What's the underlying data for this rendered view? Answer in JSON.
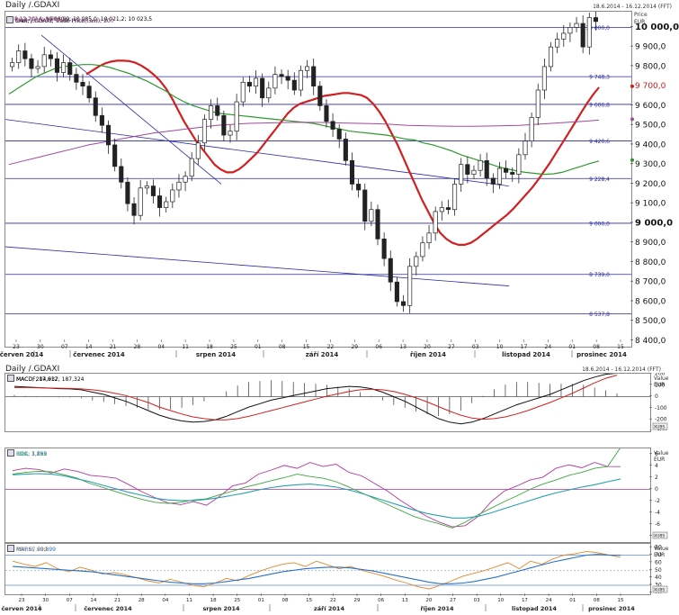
{
  "main_chart": {
    "title": "Daily /.GDAXI",
    "date_range": "18.6.2014 - 16.12.2014 (FFT)",
    "price_label": "Price",
    "currency": "EUR",
    "legend": [
      {
        "text": "SMA; /.GDAXI; Trade Price(Last); 20",
        "value": "8.12.2014; 9 694,2",
        "color": "#d21f1f"
      },
      {
        "text": "SMA; /.GDAXI; Trade Price(Last); 50",
        "value": "8.12.2014; 9 318,3",
        "color": "#2e9a2e"
      },
      {
        "text": "Cndl; /.GDAXI; Trade Price",
        "value": "8.12.2014; 10 060,9; 10 085,0; 10 021,2; 10 023,5",
        "color": "#222222"
      },
      {
        "text": "SMA; /.GDAXI; Trade Price(Last); 200",
        "value": "8.12.2014; 9 526,7",
        "color": "#a04a9a"
      }
    ],
    "level_labels": [
      "10 000,0",
      "9 748,3",
      "9 606,8",
      "9 420,6",
      "9 228,4",
      "9 000,0",
      "8 739,0",
      "8 537,8"
    ],
    "axis_labels": [
      "10 000,0",
      "9 900,0",
      "9 800,0",
      "9 700,0",
      "9 600,0",
      "9 500,0",
      "9 400,0",
      "9 300,0",
      "9 200,0",
      "9 100,0",
      "9 000,0",
      "8 900,0",
      "8 800,0",
      "8 700,0",
      "8 600,0",
      "8 500,0",
      "8 400,0"
    ],
    "day_ticks": [
      "23",
      "30",
      "07",
      "14",
      "21",
      "28",
      "04",
      "11",
      "18",
      "25",
      "01",
      "08",
      "15",
      "22",
      "29",
      "06",
      "13",
      "20",
      "27",
      "03",
      "10",
      "17",
      "24",
      "01",
      "08",
      "15"
    ],
    "months": [
      "červen 2014",
      "červenec 2014",
      "srpen 2014",
      "září 2014",
      "říjen 2014",
      "listopad 2014",
      "prosinec 2014"
    ]
  },
  "lower": {
    "title": "Daily /.GDAXI",
    "date_range": "18.6.2014 - 16.12.2014 (FFT)",
    "value_label": "Value",
    "unit": "EUR",
    "scale_tag": "XUBS",
    "macd": {
      "legend": [
        {
          "text": "MACDF; 17,612",
          "color": "#222222"
        },
        {
          "text": "MACD; 204,937; 187,324",
          "color": "#222222",
          "second_color": "#d21f1f"
        }
      ],
      "axis": [
        "200",
        "100",
        "0",
        "-100",
        "-200",
        "-300"
      ]
    },
    "roc": {
      "legend": [
        {
          "text": "ROC; 3,895",
          "color": "#b03a9a"
        },
        {
          "text": "ROC; 7,152",
          "color": "#3aa53a"
        },
        {
          "text": "EMA; 1,789",
          "color": "#2aa0b0"
        }
      ],
      "axis": [
        "6",
        "4",
        "2",
        "0",
        "-2",
        "-4",
        "-6",
        "-8"
      ]
    },
    "rsi": {
      "legend": [
        {
          "text": "RSI; 67,209",
          "color": "#e08a2a"
        },
        {
          "text": "MARSI; 69,899",
          "color": "#2a72c8"
        }
      ],
      "axis": [
        "80",
        "70",
        "60",
        "50",
        "40",
        "30",
        "20"
      ]
    }
  },
  "chart_data": [
    {
      "type": "candlestick",
      "title": "Daily /.GDAXI",
      "ylabel": "Price EUR",
      "ylim": [
        8370,
        10080
      ],
      "x_labels": [
        "23",
        "30",
        "07",
        "14",
        "21",
        "28",
        "04",
        "11",
        "18",
        "25",
        "01",
        "08",
        "15",
        "22",
        "29",
        "06",
        "13",
        "20",
        "27",
        "03",
        "10",
        "17",
        "24",
        "01",
        "08",
        "15"
      ],
      "candles_close": [
        9820,
        9880,
        9840,
        9790,
        9800,
        9860,
        9840,
        9770,
        9820,
        9760,
        9720,
        9700,
        9640,
        9550,
        9500,
        9400,
        9290,
        9210,
        9100,
        9040,
        9180,
        9190,
        9140,
        9080,
        9110,
        9170,
        9210,
        9240,
        9330,
        9410,
        9530,
        9600,
        9550,
        9450,
        9470,
        9620,
        9720,
        9700,
        9740,
        9640,
        9690,
        9760,
        9750,
        9730,
        9680,
        9780,
        9800,
        9700,
        9600,
        9520,
        9480,
        9430,
        9320,
        9200,
        9170,
        9010,
        9070,
        8920,
        8820,
        8700,
        8600,
        8580,
        8780,
        8830,
        8900,
        8950,
        9060,
        9080,
        9070,
        9200,
        9300,
        9250,
        9270,
        9320,
        9230,
        9200,
        9280,
        9260,
        9250,
        9350,
        9420,
        9540,
        9680,
        9800,
        9900,
        9940,
        9970,
        10000,
        10020,
        9900,
        10050,
        10030
      ],
      "horizontal_levels": [
        10000,
        9748.3,
        9606.8,
        9420.6,
        9228.4,
        9000,
        8739,
        8537.8
      ],
      "series": [
        {
          "name": "SMA 20",
          "values": [
            9760,
            9780,
            9800,
            9815,
            9825,
            9830,
            9830,
            9828,
            9820,
            9805,
            9785,
            9760,
            9730,
            9690,
            9640,
            9580,
            9520,
            9470,
            9420,
            9380,
            9340,
            9300,
            9275,
            9260,
            9260,
            9275,
            9300,
            9330,
            9360,
            9400,
            9440,
            9480,
            9520,
            9560,
            9590,
            9610,
            9620,
            9630,
            9640,
            9650,
            9655,
            9660,
            9665,
            9665,
            9660,
            9655,
            9640,
            9610,
            9570,
            9520,
            9460,
            9400,
            9330,
            9260,
            9190,
            9120,
            9060,
            9000,
            8950,
            8920,
            8900,
            8890,
            8890,
            8900,
            8920,
            8945,
            8970,
            8995,
            9020,
            9045,
            9075,
            9110,
            9145,
            9180,
            9220,
            9265,
            9310,
            9360,
            9410,
            9460,
            9510,
            9560,
            9610,
            9655,
            9694
          ]
        },
        {
          "name": "SMA 50",
          "values": [
            9660,
            9690,
            9720,
            9750,
            9770,
            9790,
            9800,
            9805,
            9810,
            9810,
            9805,
            9795,
            9780,
            9765,
            9745,
            9725,
            9700,
            9675,
            9645,
            9620,
            9600,
            9585,
            9570,
            9560,
            9555,
            9550,
            9545,
            9540,
            9535,
            9530,
            9525,
            9520,
            9515,
            9510,
            9500,
            9490,
            9480,
            9470,
            9465,
            9460,
            9455,
            9450,
            9440,
            9430,
            9425,
            9410,
            9400,
            9385,
            9370,
            9350,
            9335,
            9320,
            9305,
            9290,
            9278,
            9268,
            9260,
            9255,
            9250,
            9252,
            9260,
            9275,
            9290,
            9305,
            9318
          ]
        },
        {
          "name": "SMA 200",
          "values": [
            9300,
            9320,
            9340,
            9360,
            9380,
            9400,
            9415,
            9430,
            9445,
            9460,
            9470,
            9480,
            9490,
            9500,
            9505,
            9510,
            9512,
            9514,
            9515,
            9515,
            9514,
            9512,
            9510,
            9508,
            9505,
            9500,
            9498,
            9496,
            9495,
            9495,
            9496,
            9498,
            9500,
            9505,
            9510,
            9515,
            9520,
            9526.7
          ]
        }
      ]
    },
    {
      "type": "line",
      "title": "MACD",
      "ylim": [
        -300,
        200
      ],
      "series": [
        {
          "name": "MACD",
          "values": [
            90,
            85,
            80,
            75,
            70,
            68,
            60,
            40,
            20,
            -10,
            -40,
            -80,
            -120,
            -160,
            -190,
            -210,
            -220,
            -215,
            -200,
            -170,
            -130,
            -90,
            -60,
            -30,
            -10,
            10,
            30,
            50,
            70,
            80,
            90,
            85,
            70,
            40,
            0,
            -40,
            -90,
            -140,
            -190,
            -220,
            -235,
            -220,
            -190,
            -150,
            -110,
            -70,
            -40,
            -10,
            20,
            60,
            100,
            140,
            170,
            195,
            204.9
          ]
        },
        {
          "name": "Signal",
          "values": [
            80,
            80,
            78,
            76,
            74,
            72,
            68,
            60,
            48,
            30,
            10,
            -20,
            -50,
            -90,
            -120,
            -150,
            -175,
            -190,
            -200,
            -200,
            -190,
            -170,
            -145,
            -120,
            -95,
            -70,
            -45,
            -20,
            5,
            25,
            45,
            60,
            65,
            60,
            45,
            20,
            -10,
            -45,
            -85,
            -125,
            -160,
            -185,
            -195,
            -190,
            -175,
            -150,
            -120,
            -85,
            -50,
            -10,
            30,
            75,
            120,
            160,
            187.3
          ]
        }
      ]
    },
    {
      "type": "line",
      "title": "ROC",
      "ylim": [
        -9,
        7
      ],
      "series": [
        {
          "name": "ROC 3,895",
          "values": [
            3.2,
            3.6,
            3.4,
            2.8,
            3.5,
            3.1,
            2.4,
            2.2,
            1.9,
            0.8,
            -0.4,
            -1.4,
            -2.3,
            -2.6,
            -2.1,
            -2.7,
            -1.2,
            0.6,
            1.1,
            2.6,
            3.3,
            4.1,
            3.6,
            4.6,
            3.9,
            4.3,
            2.9,
            2.3,
            1.0,
            -0.3,
            -1.9,
            -3.3,
            -4.6,
            -5.6,
            -6.4,
            -6.2,
            -4.6,
            -2.1,
            -0.3,
            0.6,
            1.6,
            2.1,
            3.6,
            4.2,
            3.7,
            4.6,
            3.9,
            3.895
          ]
        },
        {
          "name": "ROC 7,152",
          "values": [
            2.6,
            2.9,
            3.1,
            3.0,
            2.5,
            1.9,
            1.0,
            0.3,
            -0.4,
            -1.1,
            -1.7,
            -2.2,
            -2.4,
            -2.2,
            -1.8,
            -1.6,
            -0.9,
            -0.3,
            0.4,
            0.9,
            1.5,
            2.0,
            2.6,
            2.2,
            1.9,
            1.3,
            0.4,
            -0.6,
            -1.6,
            -2.6,
            -3.6,
            -4.6,
            -5.3,
            -5.9,
            -6.6,
            -5.6,
            -4.3,
            -3.2,
            -2.1,
            -1.1,
            0.0,
            0.9,
            1.6,
            2.4,
            2.9,
            3.6,
            3.9,
            7.152
          ]
        },
        {
          "name": "EMA 1,789",
          "values": [
            2.5,
            2.6,
            2.7,
            2.6,
            2.3,
            1.8,
            1.3,
            0.7,
            0.1,
            -0.5,
            -1.0,
            -1.5,
            -1.8,
            -1.9,
            -1.9,
            -1.7,
            -1.4,
            -1.0,
            -0.6,
            -0.1,
            0.3,
            0.6,
            0.8,
            0.9,
            0.7,
            0.4,
            -0.1,
            -0.7,
            -1.4,
            -2.1,
            -2.8,
            -3.5,
            -4.1,
            -4.5,
            -4.9,
            -4.9,
            -4.6,
            -4.0,
            -3.3,
            -2.6,
            -1.9,
            -1.2,
            -0.6,
            -0.1,
            0.4,
            0.8,
            1.3,
            1.789
          ]
        }
      ]
    },
    {
      "type": "line",
      "title": "RSI",
      "ylim": [
        18,
        85
      ],
      "series": [
        {
          "name": "RSI",
          "values": [
            62,
            58,
            55,
            60,
            52,
            48,
            54,
            50,
            45,
            47,
            44,
            40,
            36,
            33,
            38,
            34,
            30,
            28,
            33,
            39,
            36,
            43,
            49,
            54,
            58,
            60,
            55,
            62,
            57,
            52,
            55,
            50,
            46,
            42,
            37,
            33,
            28,
            25,
            30,
            36,
            42,
            46,
            50,
            55,
            60,
            52,
            62,
            58,
            65,
            70,
            72,
            75,
            73,
            70,
            67.2
          ]
        },
        {
          "name": "MARSI",
          "values": [
            55,
            54,
            53,
            52,
            51,
            50,
            49,
            48,
            46,
            44,
            42,
            40,
            38,
            36,
            34,
            33,
            32,
            32,
            33,
            35,
            37,
            39,
            42,
            45,
            48,
            50,
            52,
            53,
            54,
            54,
            53,
            51,
            49,
            46,
            43,
            40,
            37,
            34,
            32,
            32,
            33,
            35,
            38,
            41,
            45,
            49,
            53,
            57,
            61,
            64,
            67,
            70,
            71,
            70,
            69.9
          ]
        }
      ]
    }
  ]
}
